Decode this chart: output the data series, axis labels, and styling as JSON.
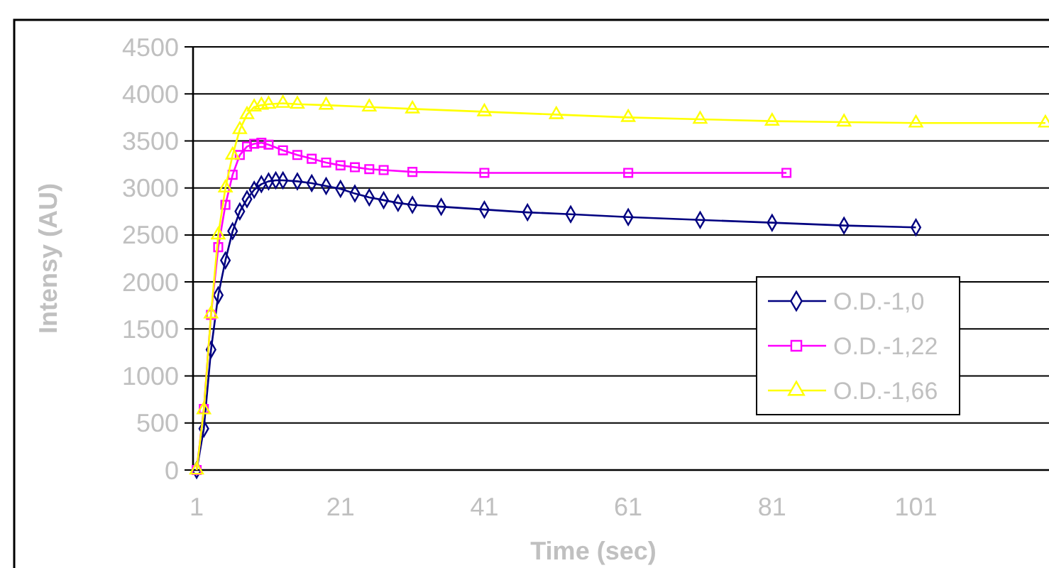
{
  "chart_data": {
    "type": "line",
    "xlabel": "Time (sec)",
    "ylabel": "Intensy (AU)",
    "xlim": [
      0.5,
      119.5
    ],
    "xticks": [
      1,
      21,
      41,
      61,
      81,
      101
    ],
    "ylim": [
      0,
      4500
    ],
    "yticks": [
      0,
      500,
      1000,
      1500,
      2000,
      2500,
      3000,
      3500,
      4000,
      4500
    ],
    "grid": "y",
    "legend": "bottom right",
    "series": [
      {
        "name": "O.D.-1,0",
        "color": "#000080",
        "marker": "diamond",
        "x": [
          1,
          2,
          3,
          4,
          5,
          6,
          7,
          8,
          9,
          10,
          11,
          12,
          13,
          15,
          17,
          19,
          21,
          23,
          25,
          27,
          29,
          31,
          35,
          41,
          47,
          53,
          61,
          71,
          81,
          91,
          101
        ],
        "values": [
          0,
          440,
          1280,
          1860,
          2230,
          2540,
          2750,
          2880,
          2980,
          3040,
          3070,
          3080,
          3080,
          3070,
          3050,
          3020,
          2990,
          2940,
          2900,
          2870,
          2840,
          2820,
          2800,
          2770,
          2740,
          2720,
          2690,
          2660,
          2630,
          2600,
          2580
        ]
      },
      {
        "name": "O.D.-1,22",
        "color": "#ff00ff",
        "marker": "square",
        "x": [
          1,
          2,
          3,
          4,
          5,
          6,
          7,
          8,
          9,
          10,
          11,
          13,
          15,
          17,
          19,
          21,
          23,
          25,
          27,
          31,
          41,
          61,
          83
        ],
        "values": [
          0,
          650,
          1650,
          2370,
          2820,
          3140,
          3350,
          3440,
          3470,
          3480,
          3460,
          3400,
          3350,
          3310,
          3270,
          3240,
          3220,
          3200,
          3190,
          3170,
          3160,
          3160,
          3160
        ]
      },
      {
        "name": "O.D.-1,66",
        "color": "#ffff00",
        "marker": "triangle",
        "x": [
          1,
          2,
          3,
          4,
          5,
          6,
          7,
          8,
          9,
          10,
          11,
          13,
          15,
          19,
          25,
          31,
          41,
          51,
          61,
          71,
          81,
          91,
          101,
          119
        ],
        "values": [
          0,
          640,
          1660,
          2500,
          3000,
          3350,
          3620,
          3780,
          3860,
          3880,
          3890,
          3900,
          3890,
          3880,
          3860,
          3840,
          3810,
          3780,
          3750,
          3730,
          3710,
          3700,
          3690,
          3690
        ]
      }
    ]
  }
}
